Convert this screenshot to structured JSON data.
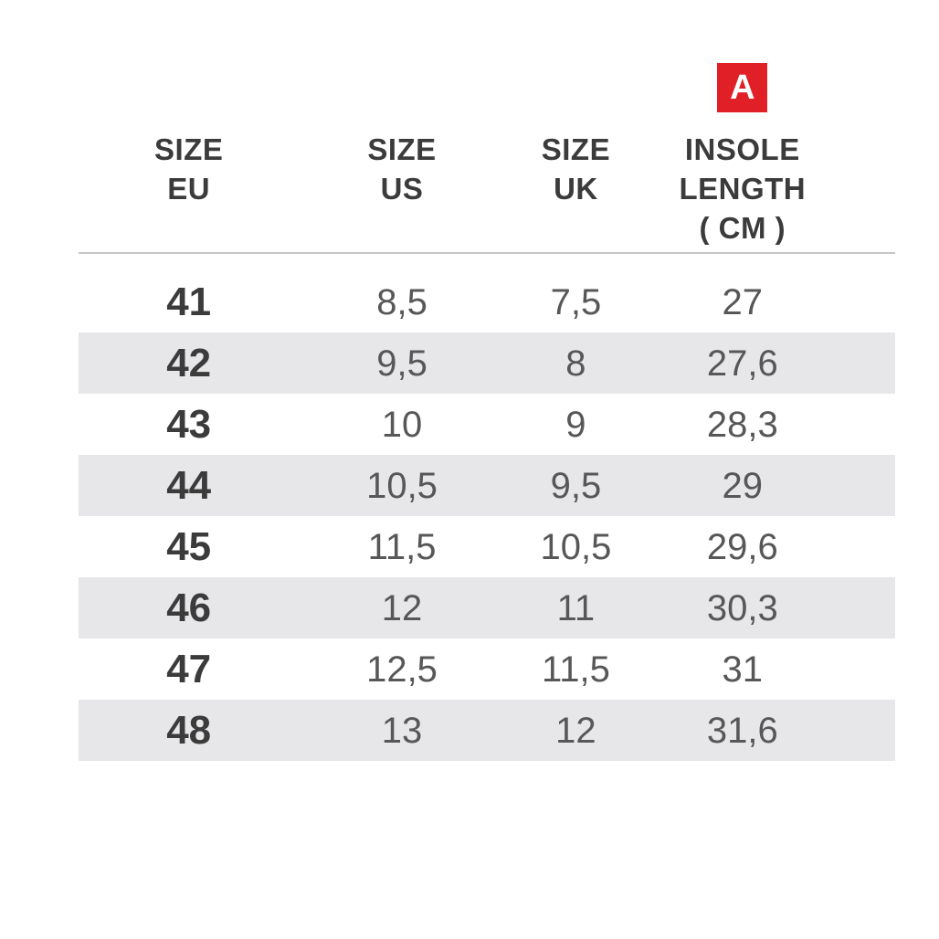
{
  "badge": {
    "label": "A",
    "color": "#e01f26",
    "text_color": "#ffffff"
  },
  "table": {
    "headers": [
      {
        "lines": [
          "SIZE",
          "EU"
        ]
      },
      {
        "lines": [
          "SIZE",
          "US"
        ]
      },
      {
        "lines": [
          "SIZE",
          "UK"
        ]
      },
      {
        "lines": [
          "INSOLE",
          "LENGTH",
          "( CM )"
        ]
      }
    ],
    "rows": [
      {
        "eu": "41",
        "us": "8,5",
        "uk": "7,5",
        "insole_cm": "27"
      },
      {
        "eu": "42",
        "us": "9,5",
        "uk": "8",
        "insole_cm": "27,6"
      },
      {
        "eu": "43",
        "us": "10",
        "uk": "9",
        "insole_cm": "28,3"
      },
      {
        "eu": "44",
        "us": "10,5",
        "uk": "9,5",
        "insole_cm": "29"
      },
      {
        "eu": "45",
        "us": "11,5",
        "uk": "10,5",
        "insole_cm": "29,6"
      },
      {
        "eu": "46",
        "us": "12",
        "uk": "11",
        "insole_cm": "30,3"
      },
      {
        "eu": "47",
        "us": "12,5",
        "uk": "11,5",
        "insole_cm": "31"
      },
      {
        "eu": "48",
        "us": "13",
        "uk": "12",
        "insole_cm": "31,6"
      }
    ]
  },
  "colors": {
    "badge_red": "#e01f26",
    "badge_text": "#ffffff",
    "header_text": "#3b3b3b",
    "eu_text": "#3b3b3c",
    "value_text": "#575759",
    "stripe": "#e7e7e9",
    "divider": "#c6c6c6",
    "background": "#ffffff"
  },
  "chart_data": {
    "type": "table",
    "title": "Shoe size conversion with insole length",
    "columns": [
      "SIZE EU",
      "SIZE US",
      "SIZE UK",
      "INSOLE LENGTH ( CM )"
    ],
    "rows": [
      [
        41,
        8.5,
        7.5,
        27
      ],
      [
        42,
        9.5,
        8,
        27.6
      ],
      [
        43,
        10,
        9,
        28.3
      ],
      [
        44,
        10.5,
        9.5,
        29
      ],
      [
        45,
        11.5,
        10.5,
        29.6
      ],
      [
        46,
        12,
        11,
        30.3
      ],
      [
        47,
        12.5,
        11.5,
        31
      ],
      [
        48,
        13,
        12,
        31.6
      ]
    ],
    "decimal_separator": ",",
    "annotation_badge": "A marks the INSOLE LENGTH column",
    "layout": {
      "striped_rows": "even rows shaded",
      "header_divider": true
    }
  }
}
